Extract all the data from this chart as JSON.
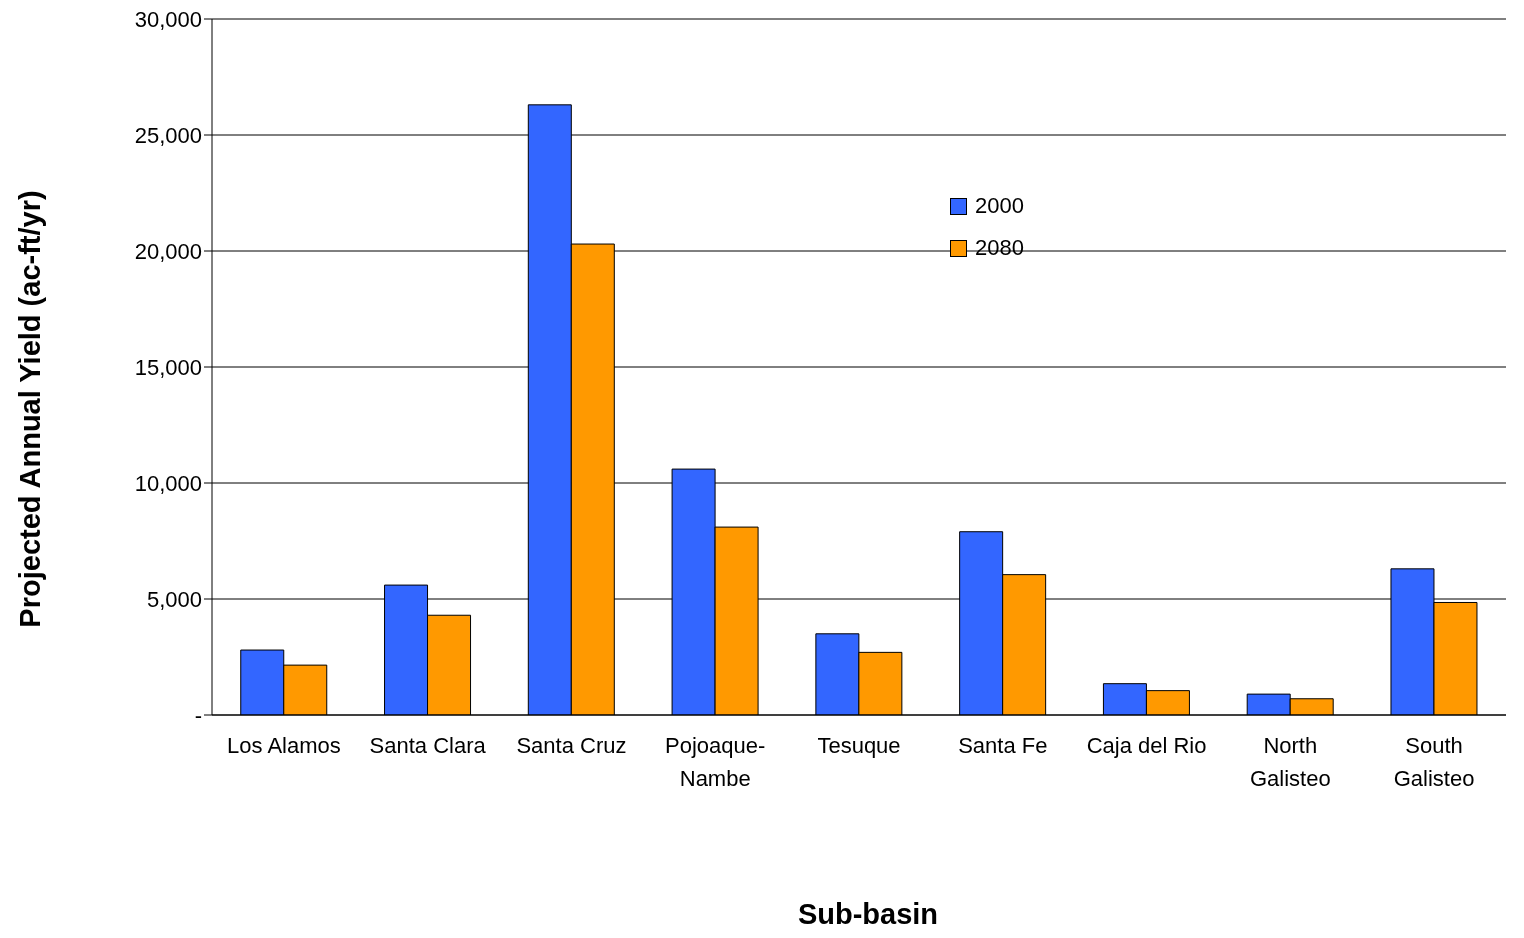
{
  "chart_data": {
    "type": "bar",
    "xlabel": "Sub-basin",
    "ylabel": "Projected Annual Yield (ac-ft/yr)",
    "categories": [
      "Los Alamos",
      "Santa Clara",
      "Santa Cruz",
      "Pojoaque-Nambe",
      "Tesuque",
      "Santa Fe",
      "Caja del Rio",
      "North Galisteo",
      "South Galisteo"
    ],
    "series": [
      {
        "name": "2000",
        "color": "#3366ff",
        "values": [
          2800,
          5600,
          26300,
          10600,
          3500,
          7900,
          1350,
          900,
          6300
        ]
      },
      {
        "name": "2080",
        "color": "#ff9900",
        "values": [
          2150,
          4300,
          20300,
          8100,
          2700,
          6050,
          1050,
          700,
          4850
        ]
      }
    ],
    "ylim": [
      0,
      30000
    ],
    "yticks": [
      {
        "value": 0,
        "label": "-"
      },
      {
        "value": 5000,
        "label": "5,000"
      },
      {
        "value": 10000,
        "label": "10,000"
      },
      {
        "value": 15000,
        "label": "15,000"
      },
      {
        "value": 20000,
        "label": "20,000"
      },
      {
        "value": 25000,
        "label": "25,000"
      },
      {
        "value": 30000,
        "label": "30,000"
      }
    ],
    "grid": "y",
    "legend": "top right"
  }
}
